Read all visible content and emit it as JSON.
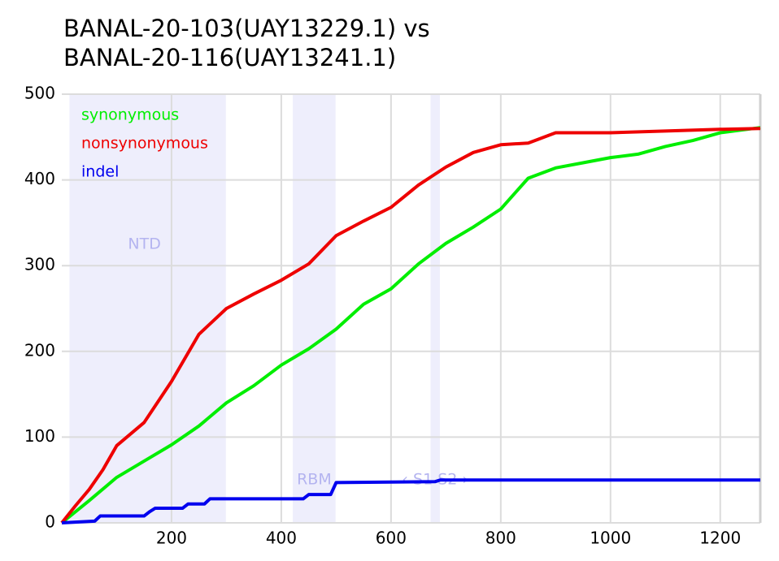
{
  "chart_data": {
    "type": "line",
    "title": [
      "BANAL-20-103(UAY13229.1) vs",
      "BANAL-20-116(UAY13241.1)"
    ],
    "xlim": [
      0,
      1273
    ],
    "ylim": [
      0,
      500
    ],
    "xticks": [
      200,
      400,
      600,
      800,
      1000,
      1200
    ],
    "yticks": [
      0,
      100,
      200,
      300,
      400,
      500
    ],
    "grid": true,
    "regions": [
      {
        "label": "NTD",
        "start": 14,
        "end": 299
      },
      {
        "label": "RBM",
        "start": 421,
        "end": 499
      },
      {
        "label": "‹ S1 S2 ›",
        "start": 672,
        "end": 689
      }
    ],
    "region_color": "#eeeefc",
    "region_label_color": "#b4b4f0",
    "series": [
      {
        "name": "synonymous",
        "color": "#00ee00",
        "x": [
          0,
          50,
          100,
          150,
          200,
          250,
          300,
          350,
          400,
          450,
          500,
          550,
          600,
          650,
          700,
          750,
          800,
          850,
          900,
          950,
          1000,
          1050,
          1100,
          1150,
          1200,
          1273
        ],
        "values": [
          0,
          26,
          53,
          72,
          91,
          113,
          140,
          160,
          184,
          203,
          226,
          255,
          273,
          302,
          326,
          345,
          366,
          402,
          414,
          420,
          426,
          430,
          439,
          446,
          455,
          461
        ]
      },
      {
        "name": "nonsynonymous",
        "color": "#ee0000",
        "x": [
          0,
          25,
          50,
          75,
          100,
          150,
          200,
          250,
          300,
          350,
          400,
          450,
          500,
          550,
          600,
          650,
          700,
          750,
          800,
          850,
          900,
          1000,
          1100,
          1200,
          1273
        ],
        "values": [
          0,
          20,
          39,
          62,
          90,
          117,
          165,
          220,
          250,
          267,
          283,
          302,
          335,
          352,
          368,
          394,
          415,
          432,
          441,
          443,
          455,
          455,
          457,
          459,
          460
        ]
      },
      {
        "name": "indel",
        "color": "#0000ee",
        "x": [
          0,
          60,
          70,
          150,
          160,
          170,
          220,
          230,
          260,
          270,
          440,
          450,
          490,
          500,
          680,
          690,
          1273
        ],
        "values": [
          0,
          2,
          8,
          8,
          13,
          17,
          17,
          22,
          22,
          28,
          28,
          33,
          33,
          47,
          48,
          50,
          50
        ]
      }
    ]
  }
}
